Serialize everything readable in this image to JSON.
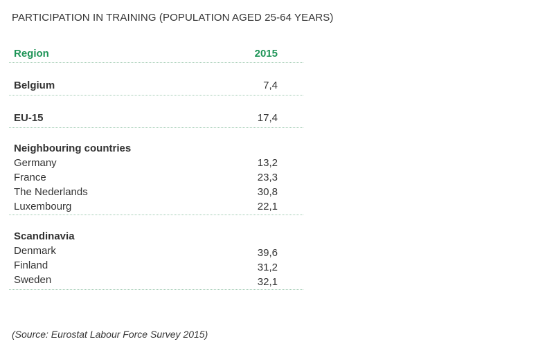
{
  "title": "PARTICIPATION IN TRAINING (POPULATION AGED 25-64 YEARS)",
  "table": {
    "header": {
      "region": "Region",
      "year": "2015"
    },
    "belgium": {
      "label": "Belgium",
      "value": "7,4"
    },
    "eu15": {
      "label": "EU-15",
      "value": "17,4"
    },
    "neighbouring": {
      "heading": "Neighbouring countries",
      "rows": [
        {
          "label": "Germany",
          "value": "13,2"
        },
        {
          "label": "France",
          "value": "23,3"
        },
        {
          "label": "The Nederlands",
          "value": "30,8"
        },
        {
          "label": "Luxembourg",
          "value": "22,1"
        }
      ]
    },
    "scandinavia": {
      "heading": "Scandinavia",
      "rows": [
        {
          "label": "Denmark",
          "value": "39,6"
        },
        {
          "label": "Finland",
          "value": "31,2"
        },
        {
          "label": "Sweden",
          "value": "32,1"
        }
      ]
    }
  },
  "source": "(Source: Eurostat Labour Force Survey 2015)",
  "colors": {
    "header_text": "#1e9457",
    "body_text": "#333333",
    "divider": "#9ec9b0"
  }
}
